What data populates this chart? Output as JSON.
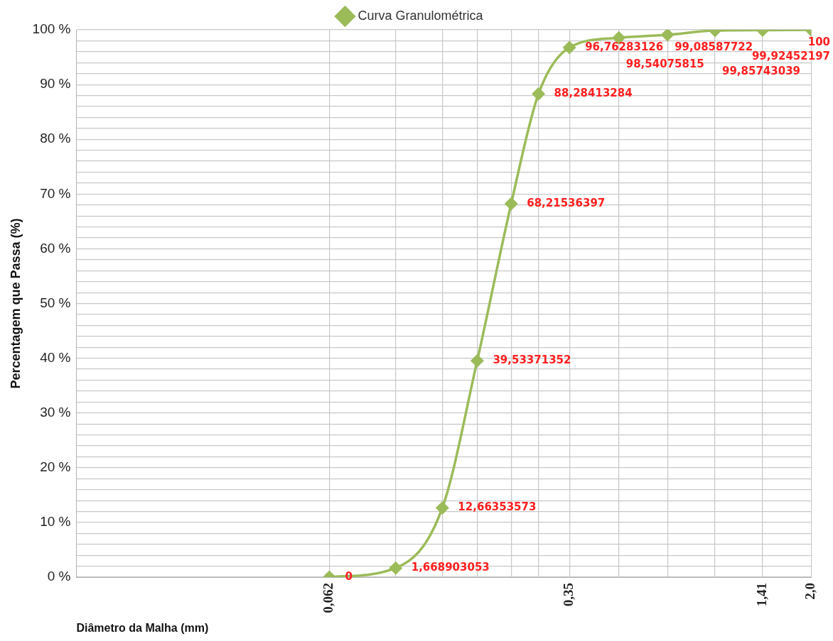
{
  "chart_data": {
    "type": "line",
    "xlabel": "Diâmetro da Malha (mm)",
    "ylabel": "Percentagem que Passa (%)",
    "log": "x",
    "grid": true,
    "legend": "top",
    "marker": "diamond",
    "xlim": [
      0.01,
      2.0
    ],
    "xticks": [
      {
        "value": 0.062,
        "label": "0,062"
      },
      {
        "value": 0.1,
        "label": null
      },
      {
        "value": 0.14,
        "label": null
      },
      {
        "value": 0.18,
        "label": null
      },
      {
        "value": 0.23,
        "label": null
      },
      {
        "value": 0.28,
        "label": null
      },
      {
        "value": 0.35,
        "label": "0,35"
      },
      {
        "value": 0.5,
        "label": null
      },
      {
        "value": 0.71,
        "label": null
      },
      {
        "value": 1.0,
        "label": null
      },
      {
        "value": 1.41,
        "label": "1,41"
      },
      {
        "value": 2.0,
        "label": "2,0"
      }
    ],
    "ylim": [
      0,
      100
    ],
    "yticks": [
      {
        "value": 0,
        "label": "0 %"
      },
      {
        "value": 2,
        "label": null
      },
      {
        "value": 4,
        "label": null
      },
      {
        "value": 6,
        "label": null
      },
      {
        "value": 8,
        "label": null
      },
      {
        "value": 10,
        "label": "10 %"
      },
      {
        "value": 12,
        "label": null
      },
      {
        "value": 14,
        "label": null
      },
      {
        "value": 16,
        "label": null
      },
      {
        "value": 18,
        "label": null
      },
      {
        "value": 20,
        "label": "20 %"
      },
      {
        "value": 22,
        "label": null
      },
      {
        "value": 24,
        "label": null
      },
      {
        "value": 26,
        "label": null
      },
      {
        "value": 28,
        "label": null
      },
      {
        "value": 30,
        "label": "30 %"
      },
      {
        "value": 32,
        "label": null
      },
      {
        "value": 34,
        "label": null
      },
      {
        "value": 36,
        "label": null
      },
      {
        "value": 38,
        "label": null
      },
      {
        "value": 40,
        "label": "40 %"
      },
      {
        "value": 42,
        "label": null
      },
      {
        "value": 44,
        "label": null
      },
      {
        "value": 46,
        "label": null
      },
      {
        "value": 48,
        "label": null
      },
      {
        "value": 50,
        "label": "50 %"
      },
      {
        "value": 52,
        "label": null
      },
      {
        "value": 54,
        "label": null
      },
      {
        "value": 56,
        "label": null
      },
      {
        "value": 58,
        "label": null
      },
      {
        "value": 60,
        "label": "60 %"
      },
      {
        "value": 62,
        "label": null
      },
      {
        "value": 64,
        "label": null
      },
      {
        "value": 66,
        "label": null
      },
      {
        "value": 68,
        "label": null
      },
      {
        "value": 70,
        "label": "70 %"
      },
      {
        "value": 72,
        "label": null
      },
      {
        "value": 74,
        "label": null
      },
      {
        "value": 76,
        "label": null
      },
      {
        "value": 78,
        "label": null
      },
      {
        "value": 80,
        "label": "80 %"
      },
      {
        "value": 82,
        "label": null
      },
      {
        "value": 84,
        "label": null
      },
      {
        "value": 86,
        "label": null
      },
      {
        "value": 88,
        "label": null
      },
      {
        "value": 90,
        "label": "90 %"
      },
      {
        "value": 92,
        "label": null
      },
      {
        "value": 94,
        "label": null
      },
      {
        "value": 96,
        "label": null
      },
      {
        "value": 98,
        "label": null
      },
      {
        "value": 100,
        "label": "100 %"
      }
    ],
    "x": [
      0.062,
      0.1,
      0.14,
      0.18,
      0.23,
      0.28,
      0.35,
      0.5,
      0.71,
      1.0,
      1.41,
      2.0
    ],
    "series": [
      {
        "name": "Curva Granulométrica",
        "color": "#9bbb59",
        "values": [
          0,
          1.668903053,
          12.66353573,
          39.53371352,
          68.21536397,
          88.28413284,
          96.76283126,
          98.54075815,
          99.08587722,
          99.85743039,
          99.92452197,
          100
        ],
        "value_labels": [
          "0",
          "1,668903053",
          "12,66353573",
          "39,53371352",
          "68,21536397",
          "88,28413284",
          "96,76283126",
          "98,54075815",
          "99,08587722",
          "99,85743039",
          "99,92452197",
          "100"
        ]
      }
    ]
  }
}
